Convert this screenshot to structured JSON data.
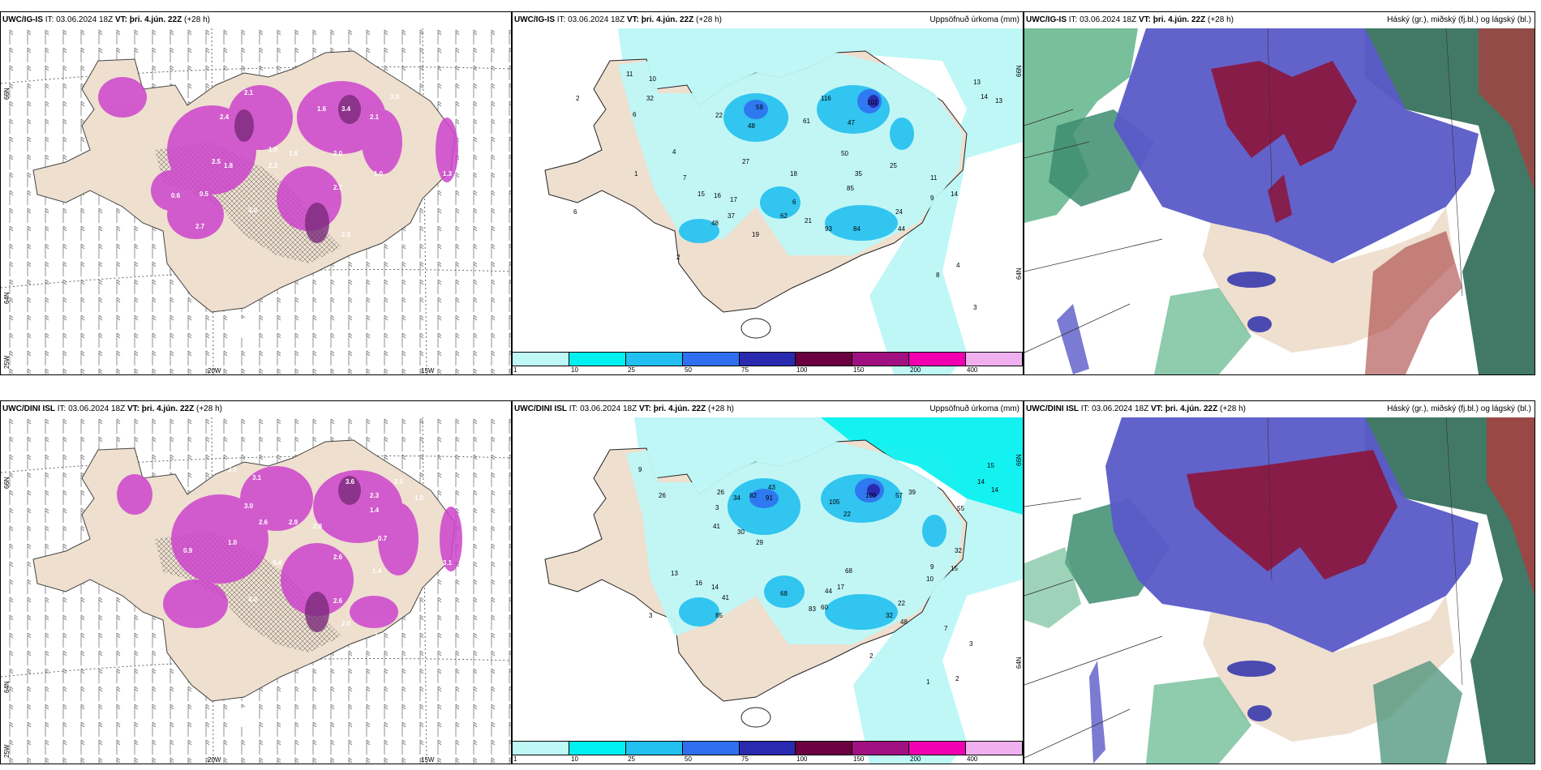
{
  "rows": [
    {
      "model": "UWC/IG-IS",
      "it_label": "IT:",
      "it_value": "03.06.2024 18Z",
      "vt_label": "VT: þri. 4.jún. 22Z",
      "lead": "(+28 h)"
    },
    {
      "model": "UWC/DINI ISL",
      "it_label": "IT:",
      "it_value": "03.06.2024 18Z",
      "vt_label": "VT: þri. 4.jún. 22Z",
      "lead": "(+28 h)"
    }
  ],
  "precip_title": "Uppsöfnuð úrkoma (mm)",
  "cloud_title": "Háský (gr.), miðský (fj.bl.) og lágský (bl.)",
  "axis_labels": {
    "lat66": "66N",
    "lat64": "64N",
    "lon25": "25W",
    "lon20": "20W",
    "lon15": "15W"
  },
  "colorbar": {
    "ticks": [
      "1",
      "10",
      "25",
      "50",
      "75",
      "100",
      "150",
      "200",
      "400"
    ],
    "colors": [
      "#bff7f7",
      "#00f0f0",
      "#22c0f0",
      "#3070f0",
      "#2a2ab0",
      "#6a0040",
      "#a01080",
      "#f000b0",
      "#f0b0f0"
    ]
  },
  "snow_values_top": [
    "3.2",
    "2.1",
    "3.3",
    "2.4",
    "1.6",
    "3.4",
    "2.1",
    "1.6",
    "1.8",
    "1.9",
    "2.0",
    "2.5",
    "1.0",
    "0.5",
    "0.6",
    "2.7",
    "3.0",
    "2.9",
    "1.4",
    "2.7",
    "2.3",
    "1.3"
  ],
  "snow_values_bottom": [
    "3.0",
    "3.1",
    "3.6",
    "2.5",
    "2.3",
    "1.4",
    "2.6",
    "2.9",
    "3.0",
    "0.7",
    "0.4",
    "1.0",
    "2.8",
    "2.6",
    "1.4",
    "3.0",
    "2.6",
    "2.0",
    "2.4",
    "3.1",
    "1.0",
    "0.9"
  ],
  "precip_values_top": [
    "11",
    "10",
    "32",
    "2",
    "6",
    "13",
    "14",
    "13",
    "22",
    "59",
    "116",
    "101",
    "48",
    "61",
    "27",
    "47",
    "50",
    "35",
    "85",
    "25",
    "11",
    "9",
    "14",
    "4",
    "1",
    "7",
    "15",
    "16",
    "17",
    "18",
    "6",
    "62",
    "37",
    "48",
    "21",
    "93",
    "84",
    "24",
    "44",
    "19",
    "2",
    "8",
    "4",
    "3",
    "6"
  ],
  "precip_values_bottom": [
    "9",
    "26",
    "3",
    "26",
    "34",
    "43",
    "82",
    "91",
    "105",
    "109",
    "57",
    "39",
    "15",
    "14",
    "14",
    "55",
    "22",
    "41",
    "30",
    "29",
    "68",
    "17",
    "68",
    "60",
    "9",
    "10",
    "32",
    "15",
    "13",
    "16",
    "14",
    "41",
    "85",
    "83",
    "22",
    "32",
    "48",
    "44",
    "2",
    "7",
    "3",
    "1",
    "2",
    "3"
  ]
}
